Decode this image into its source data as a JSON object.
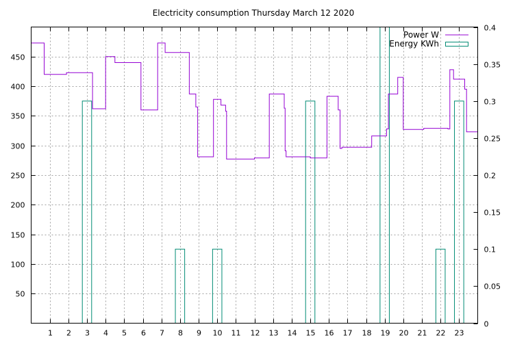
{
  "chart_data": {
    "type": "line",
    "title": "Electricity consumption Thursday March 12 2020",
    "legend_placement": "top-right",
    "grid": true,
    "x_ticks": [
      1,
      2,
      3,
      4,
      5,
      6,
      7,
      8,
      9,
      10,
      11,
      12,
      13,
      14,
      15,
      16,
      17,
      18,
      19,
      20,
      21,
      22,
      23
    ],
    "xlim": [
      0,
      24
    ],
    "y_left": {
      "ylim": [
        0,
        500
      ],
      "ticks": [
        50,
        100,
        150,
        200,
        250,
        300,
        350,
        400,
        450
      ]
    },
    "y_right": {
      "ylim": [
        0,
        0.4
      ],
      "ticks": [
        0,
        0.05,
        0.1,
        0.15,
        0.2,
        0.25,
        0.3,
        0.35,
        0.4
      ],
      "tick_labels": [
        "0",
        "0.05",
        "0.1",
        "0.15",
        "0.2",
        "0.25",
        "0.3",
        "0.35",
        "0.4"
      ]
    },
    "series": [
      {
        "name": "Power W",
        "axis": "left",
        "color": "#9400d3",
        "style": "steps",
        "points": [
          [
            0,
            473
          ],
          [
            0.7,
            473
          ],
          [
            0.7,
            420
          ],
          [
            1.9,
            420
          ],
          [
            1.9,
            423
          ],
          [
            3.3,
            423
          ],
          [
            3.3,
            362
          ],
          [
            4.0,
            362
          ],
          [
            4.0,
            450
          ],
          [
            4.5,
            450
          ],
          [
            4.5,
            440
          ],
          [
            5.9,
            440
          ],
          [
            5.9,
            360
          ],
          [
            6.8,
            360
          ],
          [
            6.8,
            473
          ],
          [
            7.2,
            473
          ],
          [
            7.2,
            457
          ],
          [
            8.5,
            457
          ],
          [
            8.5,
            387
          ],
          [
            8.85,
            387
          ],
          [
            8.85,
            365
          ],
          [
            8.95,
            365
          ],
          [
            8.95,
            281
          ],
          [
            9.8,
            281
          ],
          [
            9.8,
            378
          ],
          [
            10.2,
            378
          ],
          [
            10.2,
            368
          ],
          [
            10.45,
            368
          ],
          [
            10.45,
            358
          ],
          [
            10.5,
            358
          ],
          [
            10.5,
            277
          ],
          [
            12.0,
            277
          ],
          [
            12.0,
            279
          ],
          [
            12.8,
            279
          ],
          [
            12.8,
            387
          ],
          [
            13.6,
            387
          ],
          [
            13.6,
            363
          ],
          [
            13.65,
            363
          ],
          [
            13.65,
            291
          ],
          [
            13.7,
            291
          ],
          [
            13.7,
            281
          ],
          [
            15.0,
            281
          ],
          [
            15.0,
            279
          ],
          [
            15.9,
            279
          ],
          [
            15.9,
            383
          ],
          [
            16.5,
            383
          ],
          [
            16.5,
            360
          ],
          [
            16.6,
            360
          ],
          [
            16.6,
            295
          ],
          [
            16.7,
            295
          ],
          [
            16.7,
            297
          ],
          [
            18.3,
            297
          ],
          [
            18.3,
            316
          ],
          [
            19.1,
            316
          ],
          [
            19.1,
            328
          ],
          [
            19.2,
            328
          ],
          [
            19.2,
            387
          ],
          [
            19.7,
            387
          ],
          [
            19.7,
            415
          ],
          [
            20.0,
            415
          ],
          [
            20.0,
            327
          ],
          [
            21.1,
            327
          ],
          [
            21.1,
            329
          ],
          [
            22.4,
            329
          ],
          [
            22.4,
            328
          ],
          [
            22.5,
            328
          ],
          [
            22.5,
            428
          ],
          [
            22.7,
            428
          ],
          [
            22.7,
            412
          ],
          [
            23.3,
            412
          ],
          [
            23.3,
            395
          ],
          [
            23.4,
            395
          ],
          [
            23.4,
            323
          ],
          [
            24,
            323
          ]
        ]
      },
      {
        "name": "Energy KWh",
        "axis": "right",
        "color": "#008b74",
        "style": "boxes",
        "bars": [
          {
            "x": 3.0,
            "value": 0.3
          },
          {
            "x": 8.0,
            "value": 0.1
          },
          {
            "x": 10.0,
            "value": 0.1
          },
          {
            "x": 15.0,
            "value": 0.3
          },
          {
            "x": 19.0,
            "value": 0.4
          },
          {
            "x": 22.0,
            "value": 0.1
          },
          {
            "x": 23.0,
            "value": 0.3
          }
        ],
        "bar_width": 0.5
      }
    ]
  }
}
